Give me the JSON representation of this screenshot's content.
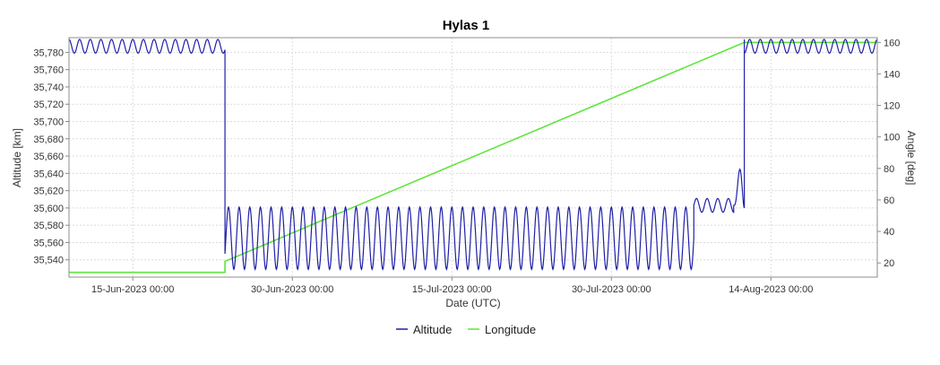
{
  "colors": {
    "altitude": "#1f1fa8",
    "longitude": "#5ce63a",
    "grid": "#dcdcdc",
    "axis": "#8c8c8c"
  },
  "chart_data": {
    "type": "line",
    "title": "Hylas 1",
    "xlabel": "Date (UTC)",
    "ylabel_left": "Altitude [km]",
    "ylabel_right": "Angle [deg]",
    "x_range": [
      "2023-06-09",
      "2023-08-24"
    ],
    "x_ticks": [
      {
        "date": "2023-06-15",
        "label": "15-Jun-2023 00:00"
      },
      {
        "date": "2023-06-30",
        "label": "30-Jun-2023 00:00"
      },
      {
        "date": "2023-07-15",
        "label": "15-Jul-2023 00:00"
      },
      {
        "date": "2023-07-30",
        "label": "30-Jul-2023 00:00"
      },
      {
        "date": "2023-08-14",
        "label": "14-Aug-2023 00:00"
      }
    ],
    "y_left": {
      "range": [
        35520,
        35797
      ],
      "ticks": [
        35540,
        35560,
        35580,
        35600,
        35620,
        35640,
        35660,
        35680,
        35700,
        35720,
        35740,
        35760,
        35780
      ],
      "tick_labels": [
        "35,540",
        "35,560",
        "35,580",
        "35,600",
        "35,620",
        "35,640",
        "35,660",
        "35,680",
        "35,700",
        "35,720",
        "35,740",
        "35,760",
        "35,780"
      ]
    },
    "y_right": {
      "range": [
        11,
        163
      ],
      "ticks": [
        20,
        40,
        60,
        80,
        100,
        120,
        140,
        160
      ],
      "tick_labels": [
        "20",
        "40",
        "60",
        "80",
        "100",
        "120",
        "140",
        "160"
      ]
    },
    "grid": true,
    "legend_position": "bottom-center",
    "series": [
      {
        "name": "Altitude",
        "axis": "left",
        "segments": [
          {
            "start": "2023-06-09",
            "end": "2023-06-23 16:00",
            "mean": 35787,
            "amplitude": 8,
            "cycles_per_day": 1.0
          },
          {
            "start": "2023-06-23 16:00",
            "end": "2023-08-06 18:00",
            "mean": 35565,
            "amplitude": 36,
            "cycles_per_day": 1.0
          },
          {
            "start": "2023-08-06 18:00",
            "end": "2023-08-10 12:00",
            "mean": 35603,
            "amplitude": 8,
            "cycles_per_day": 1.0
          },
          {
            "start": "2023-08-10 12:00",
            "end": "2023-08-11 12:00",
            "mean": 35640,
            "amplitude": 40,
            "cycles_per_day": 1.0
          },
          {
            "start": "2023-08-11 12:00",
            "end": "2023-08-24",
            "mean": 35787,
            "amplitude": 8,
            "cycles_per_day": 1.0
          }
        ],
        "jumps": [
          {
            "date": "2023-06-23 16:00",
            "from": 35780,
            "to": 35584
          },
          {
            "date": "2023-08-11 12:00",
            "from": 35600,
            "to": 35795
          }
        ]
      },
      {
        "name": "Longitude",
        "axis": "right",
        "points": [
          {
            "x": "2023-06-09",
            "y": 14
          },
          {
            "x": "2023-06-23 16:00",
            "y": 14
          },
          {
            "x": "2023-06-23 16:00",
            "y": 21
          },
          {
            "x": "2023-08-11 12:00",
            "y": 160
          },
          {
            "x": "2023-08-24",
            "y": 160
          }
        ]
      }
    ]
  }
}
